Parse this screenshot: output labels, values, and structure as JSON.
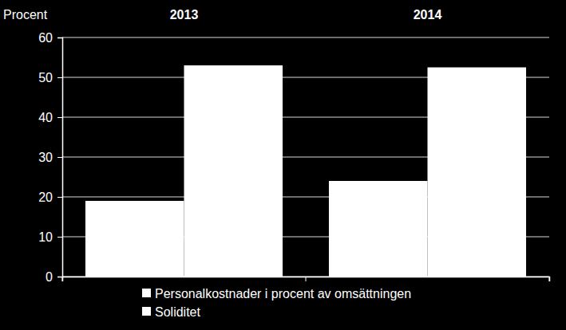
{
  "chart_data": {
    "type": "bar",
    "categories": [
      "2013",
      "2014"
    ],
    "series": [
      {
        "name": "Personalkostnader i procent av omsättningen",
        "color": "#ffffff",
        "values": [
          19,
          24
        ]
      },
      {
        "name": "Soliditet",
        "color": "#ffffff",
        "values": [
          53,
          52.5
        ]
      }
    ],
    "y_label": "Procent",
    "ylim": [
      0,
      60
    ],
    "yticks": [
      0,
      10,
      20,
      30,
      40,
      50,
      60
    ],
    "grid": true,
    "legend": "bottom"
  }
}
